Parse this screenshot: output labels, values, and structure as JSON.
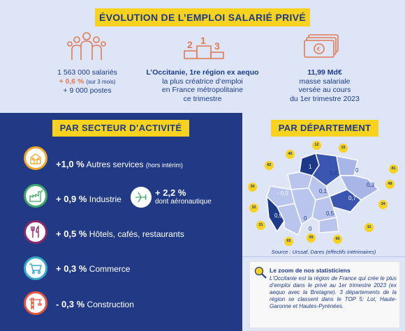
{
  "header": {
    "title": "ÉVOLUTION DE L’EMPLOI SALARIÉ PRIVÉ"
  },
  "stats": {
    "employees": {
      "line1": "1 563 000 salariés",
      "pct": "+ 0,6 %",
      "pct_note": "(sur 3 mois)",
      "line3": "+ 9 000 postes"
    },
    "region": {
      "bold": "L’Occitanie, 1re région ex aequo",
      "line2": "la plus créatrice d’emploi",
      "line3": "en France métropolitaine",
      "line4": "ce trimestre",
      "podium": [
        "2",
        "1",
        "3"
      ]
    },
    "payroll": {
      "bold": "11,99 Md€",
      "line2": "masse salariale",
      "line3": "versée au cours",
      "line4": "du 1er trimestre 2023"
    }
  },
  "sectors": {
    "title": "PAR SECTEUR D’ACTIVITÉ",
    "items": [
      {
        "value": "+1,0 %",
        "label": "Autres services",
        "note": "(hors intérim)",
        "color": "#f0a828",
        "icon": "building-icon"
      },
      {
        "value": "+ 0,9 %",
        "label": "Industrie",
        "color": "#3fa868",
        "icon": "factory-icon"
      },
      {
        "value": "+ 0,5 %",
        "label": "Hôtels, cafés, restaurants",
        "color": "#8b2a6b",
        "icon": "cutlery-icon"
      },
      {
        "value": "+ 0,3 %",
        "label": "Commerce",
        "color": "#3aa9c7",
        "icon": "cart-icon"
      },
      {
        "value": "- 0,3 %",
        "label": "Construction",
        "color": "#e2553f",
        "icon": "crane-icon"
      }
    ],
    "aero": {
      "value": "+ 2,2 %",
      "label": "dont aéronautique",
      "icon": "airplane-icon"
    }
  },
  "departments": {
    "title": "PAR DÉPARTEMENT",
    "values": [
      "1",
      "0,4",
      "0",
      "0,3",
      "- 0,5",
      "0,1",
      "0,7",
      "0,9",
      "0",
      "0,5",
      "0"
    ],
    "badges": [
      "46",
      "12",
      "15",
      "82",
      "81",
      "48",
      "30",
      "32",
      "31",
      "34",
      "11",
      "09",
      "66",
      "65"
    ],
    "source": "Source : Urssaf, Dares (effectifs intérimaires)"
  },
  "zoom": {
    "title": "Le zoom de nos statisticiens",
    "text": "L’Occitanie est la région de France qui crée le plus d’emploi dans le privé au 1er trimestre 2023 (ex aequo avec la Bretagne). 3 départements de la région se classent dans le TOP 5: Lot, Haute-Garonne et Hautes-Pyrénées."
  },
  "colors": {
    "navy": "#223a86",
    "yellow": "#f7d21e",
    "light_blue": "#dde5f6",
    "orange": "#e07b55"
  }
}
